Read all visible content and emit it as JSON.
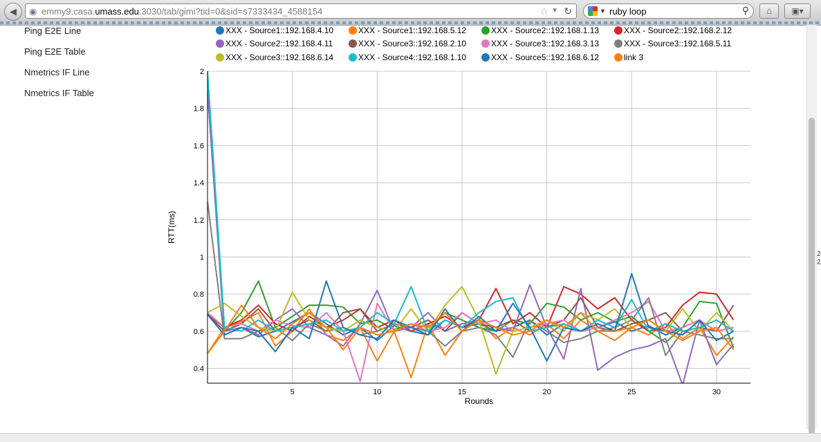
{
  "browser": {
    "url_host_prefix": "emmy9.casa.",
    "url_host_bold": "umass.edu",
    "url_rest": ":3030/tab/gimi?tid=0&sid=s7333434_4588154",
    "search_query": "ruby loop"
  },
  "sidebar": {
    "items": [
      {
        "label": "Ping E2E Line"
      },
      {
        "label": "Ping E2E Table"
      },
      {
        "label": "Nmetrics IF Line"
      },
      {
        "label": "Nmetrics IF Table"
      }
    ]
  },
  "edge_text": "2\n2",
  "chart_data": {
    "type": "line",
    "xlabel": "Rounds",
    "ylabel": "RTT(ms)",
    "xlim": [
      0,
      32
    ],
    "ylim": [
      0.32,
      2
    ],
    "xticks": [
      5,
      10,
      15,
      20,
      25,
      30
    ],
    "yticks": [
      0.4,
      0.6,
      0.8,
      1,
      1.2,
      1.4,
      1.6,
      1.8,
      2
    ],
    "grid": true,
    "legend_position": "top",
    "x": [
      0,
      1,
      2,
      3,
      4,
      5,
      6,
      7,
      8,
      9,
      10,
      11,
      12,
      13,
      14,
      15,
      16,
      17,
      18,
      19,
      20,
      21,
      22,
      23,
      24,
      25,
      26,
      27,
      28,
      29,
      30,
      31
    ],
    "series": [
      {
        "name": "XXX - Source1::192.168.4.10",
        "color": "#1f77b4",
        "values": [
          1.9,
          0.58,
          0.62,
          0.57,
          0.6,
          0.65,
          0.7,
          0.64,
          0.58,
          0.62,
          0.55,
          0.63,
          0.6,
          0.58,
          0.66,
          0.62,
          0.64,
          0.6,
          0.62,
          0.66,
          0.58,
          0.64,
          0.6,
          0.62,
          0.65,
          0.6,
          0.63,
          0.58,
          0.62,
          0.66,
          0.6,
          0.62
        ]
      },
      {
        "name": "XXX - Source1::192.168.5.12",
        "color": "#ff7f0e",
        "values": [
          0.48,
          0.62,
          0.65,
          0.7,
          0.52,
          0.6,
          0.72,
          0.58,
          0.55,
          0.62,
          0.44,
          0.6,
          0.35,
          0.64,
          0.47,
          0.6,
          0.66,
          0.56,
          0.62,
          0.58,
          0.64,
          0.56,
          0.66,
          0.6,
          0.55,
          0.62,
          0.58,
          0.64,
          0.56,
          0.62,
          0.47,
          0.57
        ]
      },
      {
        "name": "XXX - Source2::192.168.1.13",
        "color": "#2ca02c",
        "values": [
          0.69,
          0.6,
          0.7,
          0.87,
          0.62,
          0.68,
          0.74,
          0.74,
          0.73,
          0.64,
          0.66,
          0.61,
          0.64,
          0.6,
          0.7,
          0.66,
          0.62,
          0.6,
          0.66,
          0.64,
          0.75,
          0.73,
          0.66,
          0.7,
          0.65,
          0.68,
          0.6,
          0.54,
          0.62,
          0.76,
          0.75,
          0.51
        ]
      },
      {
        "name": "XXX - Source2::192.168.2.12",
        "color": "#d62728",
        "values": [
          0.69,
          0.62,
          0.66,
          0.74,
          0.64,
          0.6,
          0.68,
          0.62,
          0.66,
          0.72,
          0.62,
          0.66,
          0.6,
          0.64,
          0.68,
          0.62,
          0.66,
          0.83,
          0.64,
          0.7,
          0.62,
          0.84,
          0.8,
          0.72,
          0.78,
          0.66,
          0.6,
          0.62,
          0.74,
          0.81,
          0.8,
          0.66
        ]
      },
      {
        "name": "XXX - Source2::192.168.4.11",
        "color": "#9467bd",
        "values": [
          1.9,
          0.6,
          0.62,
          0.58,
          0.66,
          0.72,
          0.62,
          0.58,
          0.52,
          0.64,
          0.82,
          0.6,
          0.62,
          0.7,
          0.6,
          0.64,
          0.66,
          0.62,
          0.6,
          0.85,
          0.62,
          0.45,
          0.83,
          0.39,
          0.46,
          0.5,
          0.52,
          0.56,
          0.31,
          0.66,
          0.42,
          0.53
        ]
      },
      {
        "name": "XXX - Source3::192.168.2.10",
        "color": "#8c564b",
        "values": [
          0.69,
          0.6,
          0.64,
          0.72,
          0.6,
          0.62,
          0.66,
          0.6,
          0.7,
          0.72,
          0.6,
          0.64,
          0.62,
          0.66,
          0.6,
          0.7,
          0.64,
          0.62,
          0.66,
          0.6,
          0.62,
          0.66,
          0.78,
          0.62,
          0.6,
          0.64,
          0.66,
          0.7,
          0.6,
          0.62,
          0.6,
          0.74
        ]
      },
      {
        "name": "XXX - Source3::192.168.3.13",
        "color": "#e377c2",
        "values": [
          0.7,
          0.62,
          0.64,
          0.6,
          0.66,
          0.63,
          0.62,
          0.7,
          0.6,
          0.33,
          0.75,
          0.6,
          0.64,
          0.6,
          0.62,
          0.7,
          0.64,
          0.66,
          0.6,
          0.62,
          0.64,
          0.66,
          0.6,
          0.62,
          0.66,
          0.7,
          0.76,
          0.6,
          0.62,
          0.66,
          0.6,
          0.62
        ]
      },
      {
        "name": "XXX - Source3::192.168.5.11",
        "color": "#7f7f7f",
        "values": [
          1.3,
          0.56,
          0.56,
          0.6,
          0.62,
          0.55,
          0.64,
          0.6,
          0.62,
          0.58,
          0.6,
          0.64,
          0.62,
          0.6,
          0.52,
          0.6,
          0.62,
          0.58,
          0.46,
          0.66,
          0.6,
          0.54,
          0.56,
          0.6,
          0.62,
          0.66,
          0.78,
          0.47,
          0.6,
          0.58,
          0.56,
          0.56
        ]
      },
      {
        "name": "XXX - Source3::192.168.6.14",
        "color": "#bcbd22",
        "values": [
          0.7,
          0.75,
          0.68,
          0.62,
          0.6,
          0.81,
          0.66,
          0.62,
          0.6,
          0.66,
          0.62,
          0.6,
          0.72,
          0.6,
          0.74,
          0.84,
          0.66,
          0.37,
          0.6,
          0.62,
          0.66,
          0.6,
          0.7,
          0.66,
          0.72,
          0.62,
          0.66,
          0.6,
          0.72,
          0.6,
          0.7,
          0.6
        ]
      },
      {
        "name": "XXX - Source4::192.168.1.10",
        "color": "#17becf",
        "values": [
          2.0,
          0.62,
          0.6,
          0.66,
          0.6,
          0.62,
          0.64,
          0.66,
          0.6,
          0.62,
          0.7,
          0.64,
          0.84,
          0.6,
          0.66,
          0.62,
          0.7,
          0.76,
          0.78,
          0.6,
          0.62,
          0.64,
          0.6,
          0.66,
          0.62,
          0.77,
          0.6,
          0.64,
          0.6,
          0.62,
          0.66,
          0.6
        ]
      },
      {
        "name": "XXX - Source5::192.168.6.12",
        "color": "#1f77b4",
        "values": [
          0.69,
          0.58,
          0.62,
          0.6,
          0.49,
          0.62,
          0.56,
          0.87,
          0.62,
          0.58,
          0.56,
          0.66,
          0.62,
          0.58,
          0.72,
          0.6,
          0.68,
          0.6,
          0.75,
          0.62,
          0.44,
          0.62,
          0.6,
          0.64,
          0.6,
          0.91,
          0.62,
          0.6,
          0.58,
          0.66,
          0.55,
          0.6
        ]
      },
      {
        "name": "link 3",
        "color": "#ff7f0e",
        "values": [
          0.48,
          0.6,
          0.74,
          0.62,
          0.56,
          0.64,
          0.7,
          0.62,
          0.5,
          0.62,
          0.58,
          0.6,
          0.64,
          0.62,
          0.7,
          0.6,
          0.66,
          0.62,
          0.58,
          0.6,
          0.66,
          0.62,
          0.7,
          0.6,
          0.6,
          0.62,
          0.66,
          0.6,
          0.55,
          0.6,
          0.62,
          0.5
        ]
      }
    ]
  }
}
